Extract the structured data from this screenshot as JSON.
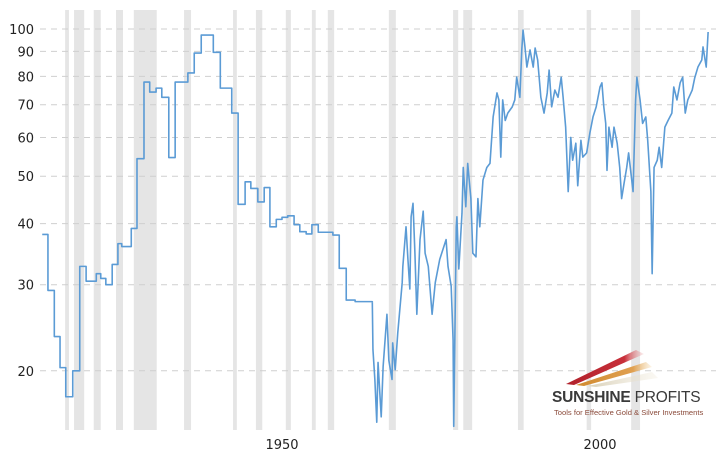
{
  "chart_data": {
    "type": "line",
    "title": "",
    "xlabel": "",
    "ylabel": "",
    "y_scale": "log",
    "ylim": [
      14.5,
      105
    ],
    "xlim": [
      1912,
      2017.5
    ],
    "y_ticks": [
      "100",
      "90",
      "80",
      "70",
      "60",
      "50",
      "40",
      "30",
      "20"
    ],
    "x_ticks": [
      "1950",
      "2000"
    ],
    "grid": "horizontal dashed",
    "line_color": "#5b9bd5",
    "recession_color": "#e5e5e5",
    "recessions": [
      [
        1915.9,
        1916.5
      ],
      [
        1917.3,
        1918.9
      ],
      [
        1920.4,
        1921.5
      ],
      [
        1923.9,
        1925.0
      ],
      [
        1926.7,
        1930.3
      ],
      [
        1934.6,
        1935.7
      ],
      [
        1942.3,
        1942.9
      ],
      [
        1945.9,
        1946.9
      ],
      [
        1950.6,
        1951.4
      ],
      [
        1954.7,
        1955.3
      ],
      [
        1957.2,
        1958.2
      ],
      [
        1966.8,
        1967.9
      ],
      [
        1976.9,
        1977.7
      ],
      [
        1978.5,
        1979.9
      ],
      [
        1987.1,
        1988.0
      ],
      [
        1997.9,
        1998.6
      ],
      [
        2004.9,
        2006.3
      ]
    ],
    "series": [
      {
        "name": "annual (step)",
        "steps": [
          [
            1912.3,
            38.0
          ],
          [
            1913.2,
            29.2
          ],
          [
            1914.2,
            23.5
          ],
          [
            1915.1,
            20.3
          ],
          [
            1916.0,
            17.7
          ],
          [
            1917.1,
            20.0
          ],
          [
            1918.2,
            32.7
          ],
          [
            1919.2,
            30.5
          ],
          [
            1920.8,
            31.6
          ],
          [
            1921.5,
            30.9
          ],
          [
            1922.3,
            30.0
          ],
          [
            1923.3,
            33.0
          ],
          [
            1924.2,
            36.4
          ],
          [
            1924.8,
            35.9
          ],
          [
            1926.3,
            39.1
          ],
          [
            1927.2,
            54.3
          ],
          [
            1928.3,
            77.9
          ],
          [
            1929.2,
            74.3
          ],
          [
            1930.2,
            75.7
          ],
          [
            1931.1,
            72.5
          ],
          [
            1932.2,
            54.6
          ],
          [
            1933.2,
            77.9
          ],
          [
            1935.2,
            81.3
          ],
          [
            1936.2,
            89.3
          ],
          [
            1937.3,
            97.2
          ],
          [
            1939.2,
            89.6
          ],
          [
            1940.3,
            75.7
          ],
          [
            1942.1,
            67.3
          ],
          [
            1943.1,
            43.8
          ],
          [
            1944.2,
            48.7
          ],
          [
            1945.1,
            47.2
          ],
          [
            1946.2,
            44.3
          ],
          [
            1947.2,
            47.4
          ],
          [
            1948.1,
            39.4
          ],
          [
            1949.1,
            40.8
          ],
          [
            1950.0,
            41.2
          ],
          [
            1950.9,
            41.5
          ],
          [
            1951.9,
            39.8
          ],
          [
            1952.8,
            38.5
          ],
          [
            1953.8,
            38.1
          ],
          [
            1954.7,
            39.8
          ],
          [
            1955.7,
            38.4
          ],
          [
            1958.0,
            37.9
          ],
          [
            1959.0,
            32.4
          ],
          [
            1960.1,
            27.9
          ],
          [
            1961.5,
            27.7
          ],
          [
            1964.2,
            27.6
          ]
        ]
      },
      {
        "name": "monthly",
        "points": [
          [
            1964.3,
            22.1
          ],
          [
            1964.6,
            19.2
          ],
          [
            1964.9,
            15.7
          ],
          [
            1965.1,
            20.8
          ],
          [
            1965.6,
            16.1
          ],
          [
            1965.9,
            20.4
          ],
          [
            1966.5,
            26.1
          ],
          [
            1966.8,
            21.0
          ],
          [
            1967.3,
            19.2
          ],
          [
            1967.4,
            22.8
          ],
          [
            1967.8,
            20.1
          ],
          [
            1968.2,
            23.9
          ],
          [
            1968.9,
            30.3
          ],
          [
            1969.0,
            32.7
          ],
          [
            1969.5,
            39.4
          ],
          [
            1969.8,
            33.8
          ],
          [
            1970.1,
            29.4
          ],
          [
            1970.3,
            41.3
          ],
          [
            1970.6,
            44.0
          ],
          [
            1970.9,
            34.8
          ],
          [
            1971.2,
            26.1
          ],
          [
            1971.7,
            37.1
          ],
          [
            1972.2,
            42.4
          ],
          [
            1972.5,
            34.8
          ],
          [
            1973.0,
            32.7
          ],
          [
            1973.6,
            26.1
          ],
          [
            1974.1,
            30.3
          ],
          [
            1974.8,
            33.8
          ],
          [
            1975.3,
            35.4
          ],
          [
            1975.8,
            37.1
          ],
          [
            1976.1,
            32.7
          ],
          [
            1976.6,
            29.8
          ],
          [
            1976.9,
            23.1
          ],
          [
            1977.0,
            15.4
          ],
          [
            1977.4,
            39.4
          ],
          [
            1977.5,
            41.3
          ],
          [
            1977.8,
            32.3
          ],
          [
            1978.3,
            42.0
          ],
          [
            1978.5,
            52.1
          ],
          [
            1978.9,
            43.3
          ],
          [
            1979.2,
            53.1
          ],
          [
            1979.7,
            45.0
          ],
          [
            1980.0,
            34.8
          ],
          [
            1980.5,
            34.2
          ],
          [
            1980.8,
            45.0
          ],
          [
            1981.1,
            39.4
          ],
          [
            1981.6,
            49.1
          ],
          [
            1982.2,
            52.1
          ],
          [
            1982.7,
            53.1
          ],
          [
            1983.2,
            66.1
          ],
          [
            1983.8,
            74.0
          ],
          [
            1984.1,
            71.6
          ],
          [
            1984.4,
            54.7
          ],
          [
            1984.7,
            71.6
          ],
          [
            1985.1,
            65.0
          ],
          [
            1985.5,
            67.3
          ],
          [
            1986.2,
            69.3
          ],
          [
            1986.6,
            71.6
          ],
          [
            1986.9,
            79.7
          ],
          [
            1987.4,
            72.5
          ],
          [
            1987.7,
            90.6
          ],
          [
            1987.9,
            99.5
          ],
          [
            1988.2,
            91.9
          ],
          [
            1988.5,
            83.6
          ],
          [
            1989.0,
            90.6
          ],
          [
            1989.5,
            83.6
          ],
          [
            1989.8,
            91.4
          ],
          [
            1990.2,
            86.4
          ],
          [
            1990.7,
            72.5
          ],
          [
            1991.2,
            67.3
          ],
          [
            1991.7,
            74.0
          ],
          [
            1992.0,
            82.4
          ],
          [
            1992.4,
            69.3
          ],
          [
            1992.9,
            75.0
          ],
          [
            1993.4,
            72.5
          ],
          [
            1993.9,
            79.7
          ],
          [
            1994.2,
            72.5
          ],
          [
            1994.6,
            63.0
          ],
          [
            1995.0,
            46.5
          ],
          [
            1995.4,
            60.0
          ],
          [
            1995.7,
            53.9
          ],
          [
            1996.2,
            58.4
          ],
          [
            1996.5,
            47.8
          ],
          [
            1997.0,
            59.2
          ],
          [
            1997.3,
            54.7
          ],
          [
            1997.9,
            55.8
          ],
          [
            1998.4,
            61.2
          ],
          [
            1998.9,
            66.1
          ],
          [
            1999.4,
            69.3
          ],
          [
            2000.0,
            76.1
          ],
          [
            2000.3,
            77.6
          ],
          [
            2000.6,
            69.3
          ],
          [
            2000.9,
            64.1
          ],
          [
            2001.1,
            51.4
          ],
          [
            2001.4,
            63.0
          ],
          [
            2001.9,
            57.3
          ],
          [
            2002.2,
            63.0
          ],
          [
            2002.7,
            58.4
          ],
          [
            2003.1,
            52.1
          ],
          [
            2003.4,
            45.0
          ],
          [
            2003.8,
            48.5
          ],
          [
            2004.2,
            52.1
          ],
          [
            2004.5,
            55.8
          ],
          [
            2005.2,
            46.5
          ],
          [
            2005.3,
            52.1
          ],
          [
            2005.6,
            71.6
          ],
          [
            2005.8,
            79.7
          ],
          [
            2006.3,
            71.6
          ],
          [
            2006.7,
            64.1
          ],
          [
            2007.2,
            66.1
          ],
          [
            2007.5,
            59.2
          ],
          [
            2008.0,
            46.5
          ],
          [
            2008.2,
            31.6
          ],
          [
            2008.5,
            52.1
          ],
          [
            2009.0,
            53.9
          ],
          [
            2009.3,
            57.3
          ],
          [
            2009.7,
            52.1
          ],
          [
            2010.2,
            63.0
          ],
          [
            2010.7,
            65.0
          ],
          [
            2011.3,
            67.3
          ],
          [
            2011.6,
            76.1
          ],
          [
            2012.1,
            71.6
          ],
          [
            2012.6,
            77.6
          ],
          [
            2013.0,
            79.7
          ],
          [
            2013.4,
            67.3
          ],
          [
            2013.8,
            71.6
          ],
          [
            2014.5,
            75.0
          ],
          [
            2014.9,
            79.5
          ],
          [
            2015.4,
            83.6
          ],
          [
            2016.0,
            86.4
          ],
          [
            2016.2,
            91.9
          ],
          [
            2016.7,
            83.6
          ],
          [
            2017.0,
            98.6
          ]
        ]
      }
    ]
  },
  "logo": {
    "name_bold": "SUNSHINE",
    "name_light": "PROFITS",
    "tagline": "Tools for Effective Gold & Silver Investments"
  }
}
